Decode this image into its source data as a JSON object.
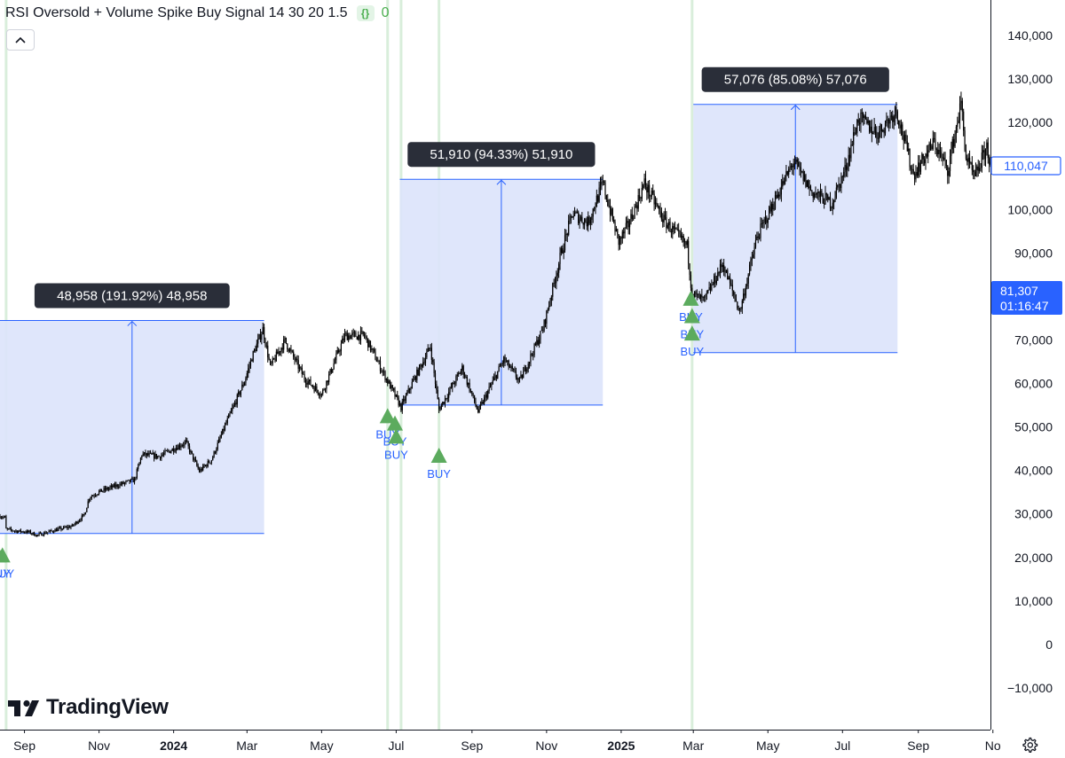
{
  "header": {
    "indicator_title": "RSI Oversold + Volume Spike Buy Signal 14 30 20 1.5",
    "source_badge": "{}",
    "signal_value": "0"
  },
  "watermark": {
    "brand": "TradingView"
  },
  "colors": {
    "measure_fill": "#dbe3fb",
    "measure_line": "#2962ff",
    "buy_marker": "#5cab5e",
    "buy_text": "#2962ff",
    "signal_line": "#d9eedb",
    "candle": "#000000",
    "price_label_box": "#2962ff"
  },
  "icons": {
    "collapse": "chevron-up-icon",
    "settings": "gear-icon",
    "logo": "tradingview-logo-icon"
  },
  "chart_data": {
    "type": "candlestick",
    "title": "RSI Oversold + Volume Spike Buy Signal 14 30 20 1.5",
    "y_axis": {
      "ticks": [
        140000,
        130000,
        120000,
        110000,
        100000,
        90000,
        80000,
        70000,
        60000,
        50000,
        40000,
        30000,
        20000,
        10000,
        0,
        -10000
      ],
      "tick_labels": [
        "140,000",
        "130,000",
        "120,000",
        "110,000",
        "100,000",
        "90,000",
        "80,000",
        "70,000",
        "60,000",
        "50,000",
        "40,000",
        "30,000",
        "20,000",
        "10,000",
        "0",
        "−10,000"
      ],
      "range": [
        -20000,
        148000
      ],
      "side": "right"
    },
    "x_axis": {
      "range": [
        "2023-08-12",
        "2025-10-30"
      ],
      "ticks": [
        {
          "date": "2023-09-01",
          "label": "Sep",
          "bold": false
        },
        {
          "date": "2023-11-01",
          "label": "Nov",
          "bold": false
        },
        {
          "date": "2024-01-01",
          "label": "2024",
          "bold": true
        },
        {
          "date": "2024-03-01",
          "label": "Mar",
          "bold": false
        },
        {
          "date": "2024-05-01",
          "label": "May",
          "bold": false
        },
        {
          "date": "2024-07-01",
          "label": "Jul",
          "bold": false
        },
        {
          "date": "2024-09-01",
          "label": "Sep",
          "bold": false
        },
        {
          "date": "2024-11-01",
          "label": "Nov",
          "bold": false
        },
        {
          "date": "2025-01-01",
          "label": "2025",
          "bold": true
        },
        {
          "date": "2025-03-01",
          "label": "Mar",
          "bold": false
        },
        {
          "date": "2025-05-01",
          "label": "May",
          "bold": false
        },
        {
          "date": "2025-07-01",
          "label": "Jul",
          "bold": false
        },
        {
          "date": "2025-09-01",
          "label": "Sep",
          "bold": false
        },
        {
          "date": "2025-11-01",
          "label": "No",
          "bold": false
        }
      ]
    },
    "price_path": [
      {
        "date": "2023-08-12",
        "close": 29500
      },
      {
        "date": "2023-08-16",
        "close": 29200
      },
      {
        "date": "2023-08-17",
        "close": 26500
      },
      {
        "date": "2023-08-25",
        "close": 26100
      },
      {
        "date": "2023-09-05",
        "close": 25800
      },
      {
        "date": "2023-09-11",
        "close": 25100
      },
      {
        "date": "2023-09-25",
        "close": 26200
      },
      {
        "date": "2023-10-10",
        "close": 27200
      },
      {
        "date": "2023-10-20",
        "close": 29800
      },
      {
        "date": "2023-10-24",
        "close": 33800
      },
      {
        "date": "2023-11-01",
        "close": 35100
      },
      {
        "date": "2023-11-15",
        "close": 36500
      },
      {
        "date": "2023-11-30",
        "close": 37800
      },
      {
        "date": "2023-12-06",
        "close": 43700
      },
      {
        "date": "2023-12-20",
        "close": 43200
      },
      {
        "date": "2024-01-11",
        "close": 46500
      },
      {
        "date": "2024-01-22",
        "close": 39800
      },
      {
        "date": "2024-02-01",
        "close": 42500
      },
      {
        "date": "2024-02-12",
        "close": 50200
      },
      {
        "date": "2024-02-28",
        "close": 60500
      },
      {
        "date": "2024-03-05",
        "close": 66000
      },
      {
        "date": "2024-03-14",
        "close": 72500
      },
      {
        "date": "2024-03-20",
        "close": 63800
      },
      {
        "date": "2024-04-01",
        "close": 69800
      },
      {
        "date": "2024-04-17",
        "close": 61200
      },
      {
        "date": "2024-05-01",
        "close": 57500
      },
      {
        "date": "2024-05-20",
        "close": 71000
      },
      {
        "date": "2024-06-05",
        "close": 71000
      },
      {
        "date": "2024-06-24",
        "close": 60500
      },
      {
        "date": "2024-07-05",
        "close": 54500
      },
      {
        "date": "2024-07-14",
        "close": 60000
      },
      {
        "date": "2024-07-29",
        "close": 68500
      },
      {
        "date": "2024-08-05",
        "close": 54000
      },
      {
        "date": "2024-08-24",
        "close": 63500
      },
      {
        "date": "2024-09-06",
        "close": 53500
      },
      {
        "date": "2024-09-27",
        "close": 65500
      },
      {
        "date": "2024-10-10",
        "close": 60500
      },
      {
        "date": "2024-10-29",
        "close": 72500
      },
      {
        "date": "2024-11-13",
        "close": 90000
      },
      {
        "date": "2024-11-22",
        "close": 99000
      },
      {
        "date": "2024-12-05",
        "close": 97000
      },
      {
        "date": "2024-12-17",
        "close": 106000
      },
      {
        "date": "2024-12-30",
        "close": 92500
      },
      {
        "date": "2025-01-07",
        "close": 96500
      },
      {
        "date": "2025-01-20",
        "close": 106000
      },
      {
        "date": "2025-02-05",
        "close": 97500
      },
      {
        "date": "2025-02-24",
        "close": 91500
      },
      {
        "date": "2025-02-28",
        "close": 80500
      },
      {
        "date": "2025-03-10",
        "close": 79000
      },
      {
        "date": "2025-03-25",
        "close": 87500
      },
      {
        "date": "2025-04-08",
        "close": 76500
      },
      {
        "date": "2025-04-22",
        "close": 93500
      },
      {
        "date": "2025-05-10",
        "close": 104000
      },
      {
        "date": "2025-05-22",
        "close": 111000
      },
      {
        "date": "2025-06-06",
        "close": 104000
      },
      {
        "date": "2025-06-22",
        "close": 101500
      },
      {
        "date": "2025-07-03",
        "close": 109000
      },
      {
        "date": "2025-07-14",
        "close": 121000
      },
      {
        "date": "2025-07-30",
        "close": 117500
      },
      {
        "date": "2025-08-14",
        "close": 123000
      },
      {
        "date": "2025-08-28",
        "close": 108000
      },
      {
        "date": "2025-09-14",
        "close": 115500
      },
      {
        "date": "2025-09-25",
        "close": 109000
      },
      {
        "date": "2025-10-06",
        "close": 124500
      },
      {
        "date": "2025-10-10",
        "close": 112000
      },
      {
        "date": "2025-10-17",
        "close": 107000
      },
      {
        "date": "2025-10-27",
        "close": 114500
      },
      {
        "date": "2025-10-30",
        "close": 110047
      }
    ],
    "measurements": [
      {
        "start_date": "2023-08-12",
        "end_date": "2024-03-15",
        "low": 25510,
        "high": 74468,
        "label": "48,958 (191.92%) 48,958"
      },
      {
        "start_date": "2024-07-04",
        "end_date": "2024-12-17",
        "low": 55030,
        "high": 106940,
        "label": "51,910 (94.33%) 51,910"
      },
      {
        "start_date": "2025-03-01",
        "end_date": "2025-08-15",
        "low": 67085,
        "high": 124161,
        "label": "57,076 (85.08%) 57,076"
      }
    ],
    "buy_signals": [
      {
        "date": "2023-08-11",
        "price": 20500,
        "label": "BUY"
      },
      {
        "date": "2023-08-14",
        "price": 20500,
        "label": "BUY"
      },
      {
        "date": "2024-06-24",
        "price": 52500,
        "label": "BUY"
      },
      {
        "date": "2024-06-30",
        "price": 50800,
        "label": "BUY"
      },
      {
        "date": "2024-07-01",
        "price": 47800,
        "label": "BUY"
      },
      {
        "date": "2024-08-05",
        "price": 43400,
        "label": "BUY"
      },
      {
        "date": "2025-02-27",
        "price": 79500,
        "label": "BUY"
      },
      {
        "date": "2025-02-28",
        "price": 75500,
        "label": "BUY"
      },
      {
        "date": "2025-02-28",
        "price": 71500,
        "label": "BUY"
      }
    ],
    "signal_lines": [
      "2023-08-17",
      "2024-06-24",
      "2024-07-05",
      "2024-08-05",
      "2025-02-28"
    ],
    "last_price": {
      "value": 110047,
      "label": "110,047"
    },
    "cursor_label": {
      "value": 81307,
      "label": "81,307",
      "sublabel": "01:16:47"
    }
  }
}
